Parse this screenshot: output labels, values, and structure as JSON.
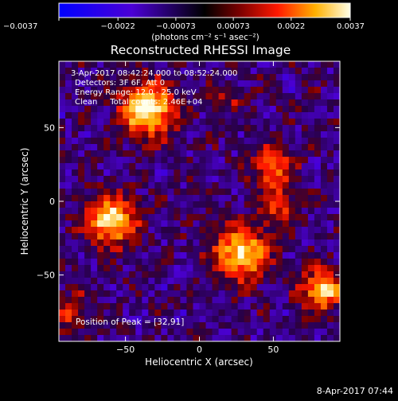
{
  "chart_data": {
    "type": "heatmap",
    "title": "Reconstructed RHESSI Image",
    "xlabel": "Heliocentric X (arcsec)",
    "ylabel": "Heliocentric Y (arcsec)",
    "xlim": [
      -95,
      95
    ],
    "ylim": [
      -95,
      95
    ],
    "xticks": [
      -50,
      0,
      50
    ],
    "xtick_labels": [
      "−50",
      "0",
      "50"
    ],
    "yticks": [
      -50,
      0,
      50
    ],
    "ytick_labels": [
      "−50",
      "0",
      "50"
    ],
    "grid": false,
    "colorbar": {
      "min": -0.0037,
      "max": 0.0037,
      "ticks": [
        -0.0037,
        -0.0022,
        -0.00073,
        0.00073,
        0.0022,
        0.0037
      ],
      "tick_labels": [
        "−0.0037",
        "−0.0022",
        "−0.00073",
        "0.00073",
        "0.0022",
        "0.0037"
      ],
      "unit_label": "(photons cm⁻² s⁻¹ asec⁻²)"
    },
    "annotations": [
      "3-Apr-2017 08:42:24.000 to 08:52:24.000",
      "Detectors: 3F 6F, Att 0",
      "Energy Range: 12.0 - 25.0 keV",
      "Clean     Total counts: 2.46E+04"
    ],
    "peak_label": "Position of Peak = [32,91]",
    "sources": [
      {
        "x": -35,
        "y": 62,
        "sigma": 14,
        "amp": 1.0
      },
      {
        "x": -60,
        "y": -13,
        "sigma": 13,
        "amp": 0.95
      },
      {
        "x": 28,
        "y": -35,
        "sigma": 14,
        "amp": 0.9
      },
      {
        "x": 50,
        "y": 22,
        "sigma": 11,
        "amp": 0.65
      },
      {
        "x": 83,
        "y": -60,
        "sigma": 10,
        "amp": 0.95
      },
      {
        "x": 55,
        "y": -5,
        "sigma": 9,
        "amp": 0.5
      },
      {
        "x": -88,
        "y": -75,
        "sigma": 10,
        "amp": 0.5
      },
      {
        "x": 20,
        "y": 70,
        "sigma": 8,
        "amp": 0.35
      }
    ]
  },
  "footer": {
    "timestamp": "8-Apr-2017 07:44"
  }
}
